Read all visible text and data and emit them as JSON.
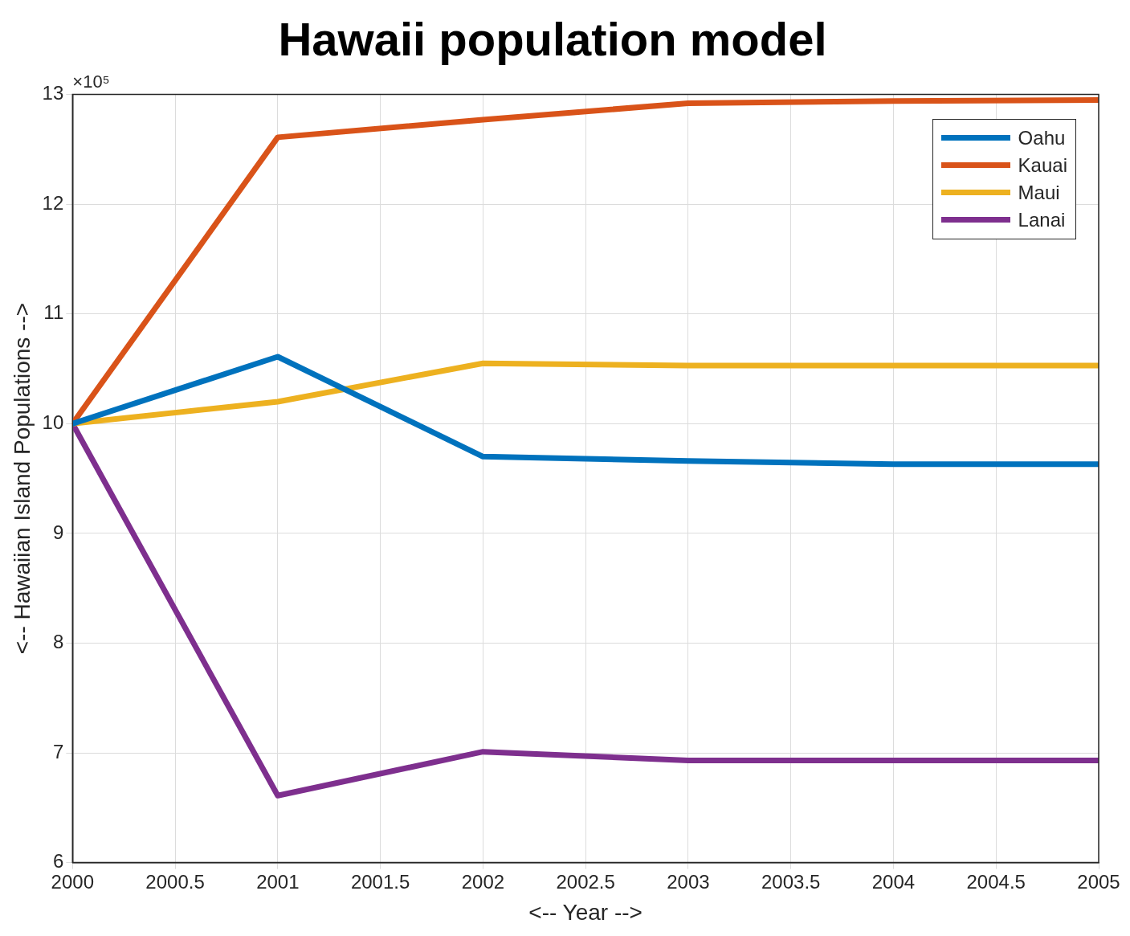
{
  "chart_data": {
    "type": "line",
    "title": "Hawaii population model",
    "xlabel": "<-- Year -->",
    "ylabel": "<-- Hawaiian Island Populations -->",
    "annotations": [
      "×10⁵"
    ],
    "x": [
      2000,
      2001,
      2002,
      2003,
      2004,
      2005
    ],
    "series": [
      {
        "name": "Oahu",
        "color": "#0072bd",
        "values": [
          10,
          10.61,
          9.7,
          9.66,
          9.63,
          9.63
        ]
      },
      {
        "name": "Kauai",
        "color": "#d95319",
        "values": [
          10,
          12.61,
          12.77,
          12.92,
          12.94,
          12.95
        ]
      },
      {
        "name": "Maui",
        "color": "#edb120",
        "values": [
          10,
          10.2,
          10.55,
          10.53,
          10.53,
          10.53
        ]
      },
      {
        "name": "Lanai",
        "color": "#7e2f8e",
        "values": [
          10,
          6.61,
          7.01,
          6.93,
          6.93,
          6.93
        ]
      }
    ],
    "xlim": [
      2000,
      2005
    ],
    "xticks": [
      2000,
      2000.5,
      2001,
      2001.5,
      2002,
      2002.5,
      2003,
      2003.5,
      2004,
      2004.5,
      2005
    ],
    "ylim": [
      6,
      13
    ],
    "yticks": [
      6,
      7,
      8,
      9,
      10,
      11,
      12,
      13
    ],
    "grid": true,
    "legend": "top right",
    "marker": "none",
    "line_style": "solid"
  }
}
